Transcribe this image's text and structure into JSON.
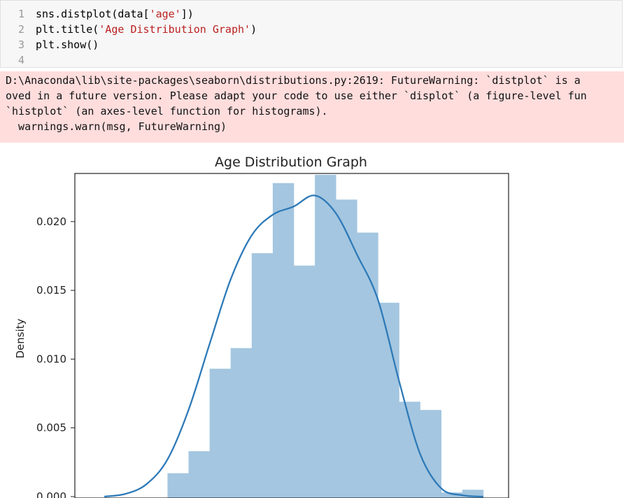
{
  "code_cell": {
    "lines": [
      {
        "num": "1",
        "parts": [
          {
            "t": "sns.distplot(data["
          },
          {
            "t": "'age'",
            "s": true
          },
          {
            "t": "])"
          }
        ]
      },
      {
        "num": "2",
        "parts": [
          {
            "t": "plt.title("
          },
          {
            "t": "'Age Distribution Graph'",
            "s": true
          },
          {
            "t": ")"
          }
        ]
      },
      {
        "num": "3",
        "parts": [
          {
            "t": "plt.show()"
          }
        ]
      },
      {
        "num": "4",
        "parts": []
      }
    ]
  },
  "stderr": {
    "lines": [
      "D:\\Anaconda\\lib\\site-packages\\seaborn\\distributions.py:2619: FutureWarning: `distplot` is a",
      "oved in a future version. Please adapt your code to use either `displot` (a figure-level fun",
      "`histplot` (an axes-level function for histograms).",
      "  warnings.warn(msg, FutureWarning)"
    ]
  },
  "colors": {
    "bar": "#a4c6e0",
    "kde": "#2e7ab8",
    "string": "#ba2121",
    "stderr_bg": "#ffdddd"
  },
  "chart_data": {
    "type": "bar",
    "title": "Age Distribution Graph",
    "ylabel": "Density",
    "xlabel": "",
    "ylim": [
      0,
      0.0235
    ],
    "yticks": [
      0.0,
      0.005,
      0.01,
      0.015,
      0.02
    ],
    "ytick_labels": [
      "0.000",
      "0.005",
      "0.010",
      "0.015",
      "0.020"
    ],
    "xlim": [
      -4.4,
      16.2
    ],
    "bins": [
      {
        "x0": 0,
        "x1": 1,
        "value": 0.0017
      },
      {
        "x0": 1,
        "x1": 2,
        "value": 0.0033
      },
      {
        "x0": 2,
        "x1": 3,
        "value": 0.0093
      },
      {
        "x0": 3,
        "x1": 4,
        "value": 0.0108
      },
      {
        "x0": 4,
        "x1": 5,
        "value": 0.0177
      },
      {
        "x0": 5,
        "x1": 6,
        "value": 0.0228
      },
      {
        "x0": 6,
        "x1": 7,
        "value": 0.0168
      },
      {
        "x0": 7,
        "x1": 8,
        "value": 0.0234
      },
      {
        "x0": 8,
        "x1": 9,
        "value": 0.0216
      },
      {
        "x0": 9,
        "x1": 10,
        "value": 0.0192
      },
      {
        "x0": 10,
        "x1": 11,
        "value": 0.0141
      },
      {
        "x0": 11,
        "x1": 12,
        "value": 0.0069
      },
      {
        "x0": 12,
        "x1": 13,
        "value": 0.0063
      },
      {
        "x0": 13,
        "x1": 14,
        "value": 0.0003
      },
      {
        "x0": 14,
        "x1": 15,
        "value": 0.0005
      }
    ],
    "kde": {
      "x": [
        -3,
        -2,
        -1,
        0,
        1,
        2,
        3,
        4,
        5,
        6,
        7,
        8,
        9,
        10,
        11,
        12,
        13,
        14,
        15
      ],
      "y": [
        0.0,
        0.0002,
        0.0009,
        0.0027,
        0.0063,
        0.0111,
        0.0158,
        0.019,
        0.0205,
        0.0211,
        0.0219,
        0.0206,
        0.0176,
        0.0143,
        0.0084,
        0.0031,
        0.0006,
        0.0001,
        0.0
      ]
    }
  }
}
